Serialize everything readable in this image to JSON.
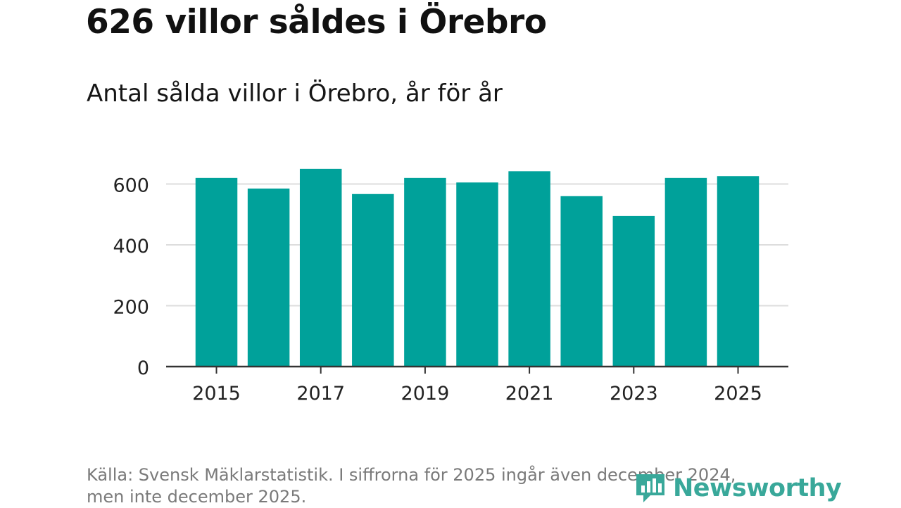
{
  "header": {
    "title": "626 villor såldes i Örebro",
    "subtitle": "Antal sålda villor i Örebro, år för år"
  },
  "footer": {
    "source_line1": "Källa: Svensk Mäklarstatistik. I siffrorna för 2025 ingår även december 2024,",
    "source_line2": "men inte december 2025."
  },
  "logo": {
    "text": "Newsworthy",
    "icon": "bar-chart-logo-icon",
    "color": "#39a89a"
  },
  "chart_data": {
    "type": "bar",
    "title": "626 villor såldes i Örebro",
    "subtitle": "Antal sålda villor i Örebro, år för år",
    "xlabel": "",
    "ylabel": "",
    "categories": [
      "2015",
      "2016",
      "2017",
      "2018",
      "2019",
      "2020",
      "2021",
      "2022",
      "2023",
      "2024",
      "2025"
    ],
    "values": [
      620,
      585,
      650,
      567,
      620,
      605,
      642,
      560,
      495,
      620,
      626
    ],
    "x_tick_labels": [
      "2015",
      "2017",
      "2019",
      "2021",
      "2023",
      "2025"
    ],
    "y_ticks": [
      0,
      200,
      400,
      600
    ],
    "ylim": [
      0,
      650
    ],
    "grid": true,
    "bar_color": "#00a19a",
    "grid_color": "#dddddd",
    "axis_color": "#333333"
  }
}
